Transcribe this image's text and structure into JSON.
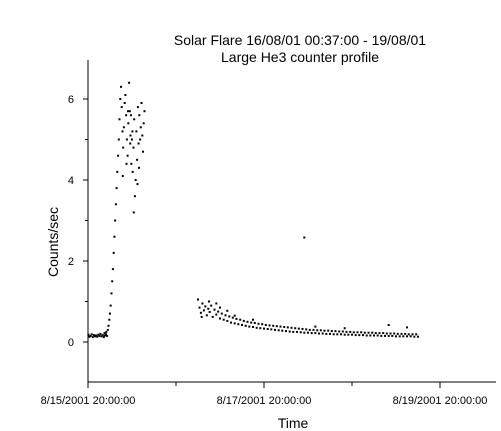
{
  "chart_data": {
    "type": "scatter",
    "title": "Solar Flare 16/08/01 00:37:00 - 19/08/01",
    "subtitle": "Large He3 counter profile",
    "xlabel": "Time",
    "ylabel": "Counts/sec",
    "x_range_hours": [
      -4,
      96
    ],
    "ylim": [
      -1,
      7
    ],
    "x_ticks": [
      {
        "hour": 0,
        "label": "8/15/2001  20:00:00"
      },
      {
        "hour": 48,
        "label": "8/17/2001  20:00:00"
      },
      {
        "hour": 96,
        "label": "8/19/2001  20:00:00"
      }
    ],
    "x_minor_ticks_hours": [
      24,
      72
    ],
    "y_ticks": [
      0,
      2,
      4,
      6
    ],
    "grid": false,
    "legend": "none",
    "marker_color": "#000000",
    "series": [
      {
        "points": [
          [
            -3.5,
            0.13
          ],
          [
            -3.2,
            0.16
          ],
          [
            -2.9,
            0.12
          ],
          [
            -2.6,
            0.18
          ],
          [
            -2.3,
            0.14
          ],
          [
            -2.0,
            0.11
          ],
          [
            -1.7,
            0.17
          ],
          [
            -1.4,
            0.15
          ],
          [
            -1.1,
            0.2
          ],
          [
            -0.8,
            0.12
          ],
          [
            -0.5,
            0.16
          ],
          [
            -0.2,
            0.14
          ],
          [
            0.1,
            0.18
          ],
          [
            0.4,
            0.13
          ],
          [
            0.7,
            0.15
          ],
          [
            1.0,
            0.19
          ],
          [
            1.3,
            0.12
          ],
          [
            1.6,
            0.17
          ],
          [
            1.9,
            0.14
          ],
          [
            2.2,
            0.16
          ],
          [
            2.5,
            0.13
          ],
          [
            2.8,
            0.18
          ],
          [
            3.1,
            0.15
          ],
          [
            3.4,
            0.2
          ],
          [
            3.7,
            0.14
          ],
          [
            4.0,
            0.17
          ],
          [
            4.3,
            0.12
          ],
          [
            4.6,
            0.16
          ],
          [
            4.9,
            0.19
          ],
          [
            5.2,
            0.15
          ],
          [
            4.5,
            0.22
          ],
          [
            5.0,
            0.25
          ],
          [
            5.4,
            0.3
          ],
          [
            5.6,
            0.4
          ],
          [
            5.8,
            0.55
          ],
          [
            6.0,
            0.7
          ],
          [
            6.2,
            0.9
          ],
          [
            6.4,
            1.2
          ],
          [
            6.6,
            1.5
          ],
          [
            6.8,
            1.8
          ],
          [
            7.0,
            2.2
          ],
          [
            7.2,
            2.6
          ],
          [
            7.4,
            3.0
          ],
          [
            7.6,
            3.4
          ],
          [
            7.8,
            3.8
          ],
          [
            8.0,
            4.2
          ],
          [
            8.2,
            4.6
          ],
          [
            8.4,
            5.0
          ],
          [
            8.6,
            5.5
          ],
          [
            8.8,
            6.0
          ],
          [
            9.0,
            6.3
          ],
          [
            9.2,
            5.8
          ],
          [
            9.4,
            5.2
          ],
          [
            9.6,
            4.8
          ],
          [
            9.8,
            5.3
          ],
          [
            10.0,
            5.9
          ],
          [
            10.2,
            6.1
          ],
          [
            10.4,
            5.6
          ],
          [
            10.6,
            5.0
          ],
          [
            10.8,
            4.6
          ],
          [
            11.0,
            5.4
          ],
          [
            11.2,
            6.4
          ],
          [
            11.4,
            5.7
          ],
          [
            11.6,
            5.1
          ],
          [
            11.8,
            4.4
          ],
          [
            12.0,
            5.0
          ],
          [
            12.2,
            4.2
          ],
          [
            12.4,
            4.8
          ],
          [
            12.6,
            5.5
          ],
          [
            12.8,
            3.6
          ],
          [
            13.0,
            4.0
          ],
          [
            13.2,
            5.2
          ],
          [
            13.4,
            4.5
          ],
          [
            13.6,
            5.8
          ],
          [
            13.8,
            4.9
          ],
          [
            14.0,
            5.6
          ],
          [
            14.2,
            5.0
          ],
          [
            14.4,
            5.3
          ],
          [
            14.6,
            5.9
          ],
          [
            14.8,
            5.1
          ],
          [
            15.0,
            4.7
          ],
          [
            15.2,
            5.4
          ],
          [
            15.4,
            5.7
          ],
          [
            9.5,
            4.1
          ],
          [
            10.5,
            4.4
          ],
          [
            11.5,
            4.9
          ],
          [
            12.5,
            3.2
          ],
          [
            13.5,
            3.9
          ],
          [
            12.1,
            5.2
          ],
          [
            11.7,
            5.6
          ],
          [
            10.9,
            5.7
          ],
          [
            13.9,
            4.3
          ],
          [
            59,
            2.58
          ],
          [
            30.0,
            1.05
          ],
          [
            30.4,
            0.85
          ],
          [
            30.8,
            0.72
          ],
          [
            31.2,
            0.95
          ],
          [
            31.6,
            0.78
          ],
          [
            32.0,
            0.88
          ],
          [
            32.4,
            0.66
          ],
          [
            32.8,
            0.82
          ],
          [
            33.2,
            0.74
          ],
          [
            33.6,
            0.9
          ],
          [
            34.0,
            0.62
          ],
          [
            34.5,
            0.8
          ],
          [
            35.0,
            0.68
          ],
          [
            35.5,
            0.75
          ],
          [
            36.0,
            0.58
          ],
          [
            36.5,
            0.7
          ],
          [
            37.0,
            0.55
          ],
          [
            37.5,
            0.66
          ],
          [
            38.0,
            0.52
          ],
          [
            38.5,
            0.63
          ],
          [
            39.0,
            0.48
          ],
          [
            39.5,
            0.6
          ],
          [
            40.0,
            0.46
          ],
          [
            40.5,
            0.57
          ],
          [
            41.0,
            0.44
          ],
          [
            41.5,
            0.55
          ],
          [
            42.0,
            0.42
          ],
          [
            42.5,
            0.52
          ],
          [
            43.0,
            0.4
          ],
          [
            43.5,
            0.5
          ],
          [
            44.0,
            0.38
          ],
          [
            44.5,
            0.48
          ],
          [
            45.0,
            0.37
          ],
          [
            45.5,
            0.47
          ],
          [
            46.0,
            0.35
          ],
          [
            46.5,
            0.45
          ],
          [
            47.0,
            0.34
          ],
          [
            47.5,
            0.44
          ],
          [
            48.0,
            0.33
          ],
          [
            48.5,
            0.42
          ],
          [
            49.0,
            0.32
          ],
          [
            49.5,
            0.41
          ],
          [
            50.0,
            0.31
          ],
          [
            50.5,
            0.4
          ],
          [
            51.0,
            0.3
          ],
          [
            51.5,
            0.39
          ],
          [
            52.0,
            0.29
          ],
          [
            52.5,
            0.38
          ],
          [
            53.0,
            0.28
          ],
          [
            53.5,
            0.37
          ],
          [
            54.0,
            0.27
          ],
          [
            54.5,
            0.36
          ],
          [
            55.0,
            0.26
          ],
          [
            55.5,
            0.35
          ],
          [
            56.0,
            0.25
          ],
          [
            56.5,
            0.34
          ],
          [
            57.0,
            0.25
          ],
          [
            57.5,
            0.33
          ],
          [
            58.0,
            0.24
          ],
          [
            58.5,
            0.32
          ],
          [
            59.0,
            0.23
          ],
          [
            59.5,
            0.31
          ],
          [
            60.0,
            0.23
          ],
          [
            60.5,
            0.3
          ],
          [
            61.0,
            0.22
          ],
          [
            61.5,
            0.3
          ],
          [
            62.0,
            0.22
          ],
          [
            62.5,
            0.29
          ],
          [
            63.0,
            0.21
          ],
          [
            63.5,
            0.29
          ],
          [
            64.0,
            0.21
          ],
          [
            64.5,
            0.28
          ],
          [
            65.0,
            0.2
          ],
          [
            65.5,
            0.28
          ],
          [
            66.0,
            0.2
          ],
          [
            66.5,
            0.27
          ],
          [
            67.0,
            0.19
          ],
          [
            67.5,
            0.27
          ],
          [
            68.0,
            0.19
          ],
          [
            68.5,
            0.26
          ],
          [
            69.0,
            0.19
          ],
          [
            69.5,
            0.26
          ],
          [
            70.0,
            0.18
          ],
          [
            70.5,
            0.25
          ],
          [
            71.0,
            0.18
          ],
          [
            71.5,
            0.25
          ],
          [
            72.0,
            0.18
          ],
          [
            72.5,
            0.24
          ],
          [
            73.0,
            0.17
          ],
          [
            73.5,
            0.24
          ],
          [
            74.0,
            0.17
          ],
          [
            74.5,
            0.24
          ],
          [
            75.0,
            0.17
          ],
          [
            75.5,
            0.23
          ],
          [
            76.0,
            0.16
          ],
          [
            76.5,
            0.23
          ],
          [
            77.0,
            0.16
          ],
          [
            77.5,
            0.23
          ],
          [
            78.0,
            0.16
          ],
          [
            78.5,
            0.22
          ],
          [
            79.0,
            0.16
          ],
          [
            79.5,
            0.22
          ],
          [
            80.0,
            0.15
          ],
          [
            80.5,
            0.22
          ],
          [
            81.0,
            0.15
          ],
          [
            81.5,
            0.21
          ],
          [
            82.0,
            0.15
          ],
          [
            82.5,
            0.21
          ],
          [
            83.0,
            0.15
          ],
          [
            83.5,
            0.21
          ],
          [
            84.0,
            0.14
          ],
          [
            84.5,
            0.2
          ],
          [
            85.0,
            0.14
          ],
          [
            85.5,
            0.2
          ],
          [
            86.0,
            0.14
          ],
          [
            86.5,
            0.2
          ],
          [
            87.0,
            0.14
          ],
          [
            87.5,
            0.19
          ],
          [
            88.0,
            0.14
          ],
          [
            88.5,
            0.19
          ],
          [
            89.0,
            0.13
          ],
          [
            89.5,
            0.19
          ],
          [
            90.0,
            0.13
          ],
          [
            82.0,
            0.42
          ],
          [
            87.0,
            0.36
          ],
          [
            70.0,
            0.34
          ],
          [
            62.0,
            0.38
          ],
          [
            45.0,
            0.55
          ],
          [
            33.0,
            1.0
          ],
          [
            35.0,
            0.95
          ],
          [
            31.0,
            0.62
          ],
          [
            36.0,
            0.85
          ],
          [
            38.0,
            0.77
          ],
          [
            40.0,
            0.65
          ]
        ]
      }
    ]
  }
}
